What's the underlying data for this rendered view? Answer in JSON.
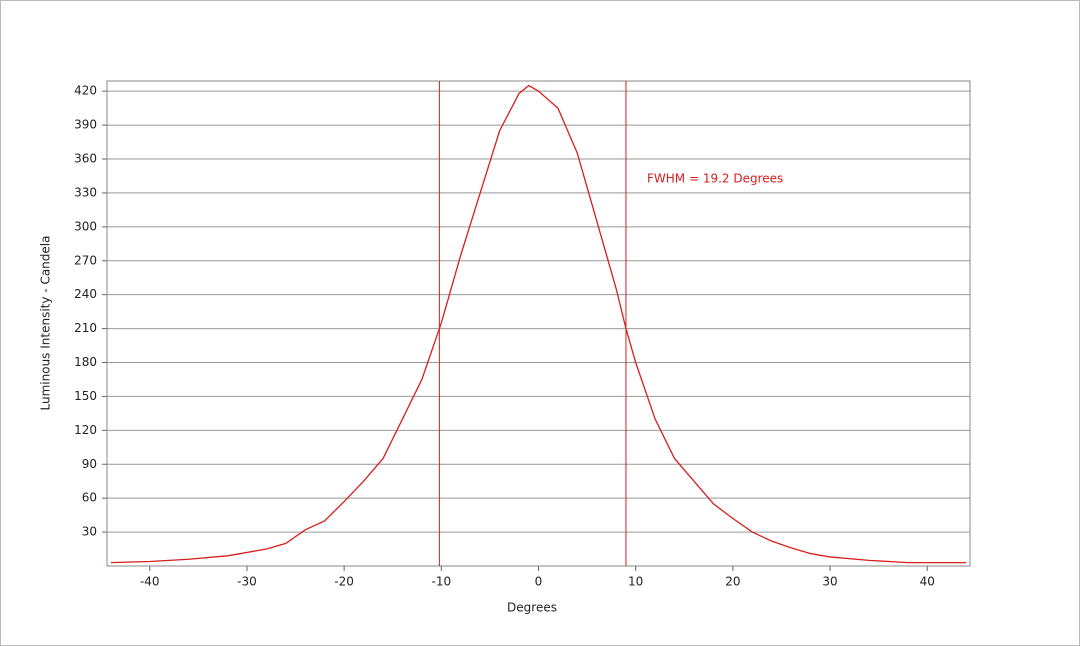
{
  "chart_data": {
    "type": "line",
    "x_label": "Degrees",
    "y_label": "Luminous Intensity - Candela",
    "annotation": "FWHM = 19.2 Degrees",
    "color": "#d81e1e",
    "vlines": [
      -10.2,
      9.0
    ],
    "x": [
      -44,
      -40,
      -36,
      -32,
      -28,
      -26,
      -24,
      -22,
      -20,
      -18,
      -16,
      -14,
      -12,
      -10,
      -8,
      -6,
      -4,
      -2,
      -1,
      0,
      2,
      4,
      6,
      8,
      9,
      10,
      12,
      14,
      16,
      18,
      20,
      22,
      24,
      26,
      28,
      30,
      34,
      38,
      44
    ],
    "values": [
      3,
      4,
      6,
      9,
      15,
      20,
      32,
      40,
      57,
      75,
      95,
      130,
      165,
      215,
      275,
      330,
      385,
      418,
      425,
      420,
      405,
      365,
      305,
      245,
      210,
      180,
      130,
      95,
      75,
      55,
      42,
      30,
      22,
      16,
      11,
      8,
      5,
      3,
      3
    ],
    "xlim": [
      -44.4,
      44.4
    ],
    "ylim": [
      0,
      429
    ],
    "xticks": [
      -40,
      -30,
      -20,
      -10,
      0,
      10,
      20,
      30,
      40
    ],
    "yticks": [
      30,
      60,
      90,
      120,
      150,
      180,
      210,
      240,
      270,
      300,
      330,
      360,
      390,
      420
    ],
    "grid": true
  }
}
